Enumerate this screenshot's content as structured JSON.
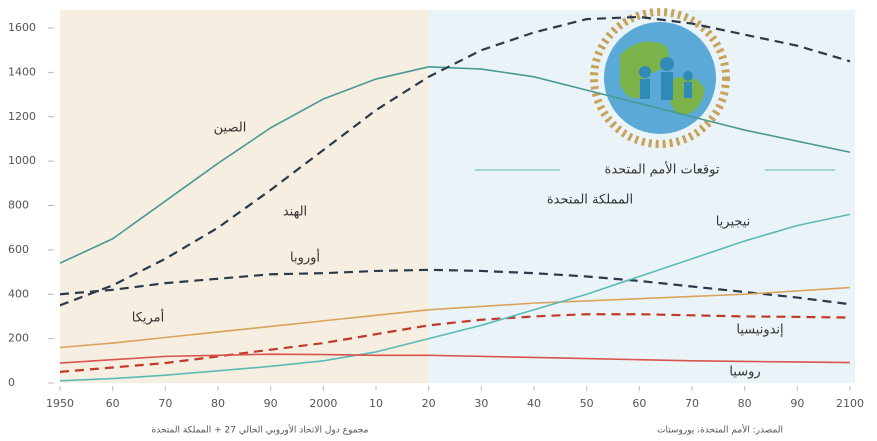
{
  "chart_data": {
    "type": "line",
    "x": [
      1950,
      1960,
      1970,
      1980,
      1990,
      2000,
      2010,
      2020,
      2030,
      2040,
      2050,
      2060,
      2070,
      2080,
      2090,
      2100
    ],
    "series": [
      {
        "name": "الصين",
        "color": "#4a9a94",
        "dashed": false,
        "values": [
          540,
          650,
          820,
          990,
          1150,
          1280,
          1370,
          1425,
          1415,
          1380,
          1320,
          1260,
          1200,
          1140,
          1090,
          1040
        ]
      },
      {
        "name": "الهند",
        "color": "#2b3a4a",
        "dashed": true,
        "values": [
          350,
          440,
          560,
          700,
          870,
          1050,
          1230,
          1380,
          1500,
          1580,
          1640,
          1650,
          1620,
          1570,
          1520,
          1450
        ]
      },
      {
        "name": "أوروبا",
        "color": "#2b3a4a",
        "dashed": true,
        "values": [
          400,
          420,
          450,
          470,
          490,
          495,
          505,
          510,
          505,
          495,
          480,
          460,
          435,
          410,
          385,
          355
        ]
      },
      {
        "name": "أمريكا",
        "color": "#d9a35c",
        "dashed": false,
        "values": [
          160,
          180,
          205,
          230,
          255,
          280,
          305,
          330,
          345,
          360,
          370,
          380,
          390,
          400,
          415,
          430
        ]
      },
      {
        "name": "إندونيسيا",
        "color": "#c0392b",
        "dashed": true,
        "values": [
          50,
          70,
          90,
          120,
          150,
          180,
          220,
          260,
          285,
          300,
          310,
          310,
          305,
          300,
          298,
          295
        ]
      },
      {
        "name": "نيجيريا",
        "color": "#5bbab5",
        "dashed": false,
        "values": [
          10,
          20,
          35,
          55,
          75,
          100,
          140,
          200,
          260,
          330,
          400,
          480,
          560,
          640,
          710,
          760
        ]
      },
      {
        "name": "روسيا",
        "color": "#d9534f",
        "dashed": false,
        "values": [
          90,
          105,
          120,
          125,
          130,
          128,
          125,
          125,
          120,
          115,
          110,
          105,
          100,
          97,
          95,
          92
        ]
      }
    ],
    "xlim": [
      1950,
      2100
    ],
    "xticks": [
      1950,
      {
        "value": 1960,
        "label": "60"
      },
      {
        "value": 1970,
        "label": "70"
      },
      {
        "value": 1980,
        "label": "80"
      },
      {
        "value": 1990,
        "label": "90"
      },
      2000,
      {
        "value": 2010,
        "label": "10"
      },
      {
        "value": 2020,
        "label": "20"
      },
      {
        "value": 2030,
        "label": "30"
      },
      {
        "value": 2040,
        "label": "40"
      },
      {
        "value": 2050,
        "label": "50"
      },
      {
        "value": 2060,
        "label": "60"
      },
      {
        "value": 2070,
        "label": "70"
      },
      {
        "value": 2080,
        "label": "80"
      },
      {
        "value": 2090,
        "label": "90"
      },
      2100
    ],
    "ylim": [
      0,
      1600
    ],
    "yticks": [
      0,
      200,
      400,
      600,
      800,
      1000,
      1200,
      1400,
      1600
    ],
    "annotations": [
      "توقعات الأمم المتحدة",
      "المملكة المتحدة"
    ],
    "footnotes": [
      "مجموع دول الاتحاد الأوروبي الحالي 27 + المملكة المتحدة",
      "المصدر: الأمم المتحدة، يوروستات"
    ]
  }
}
